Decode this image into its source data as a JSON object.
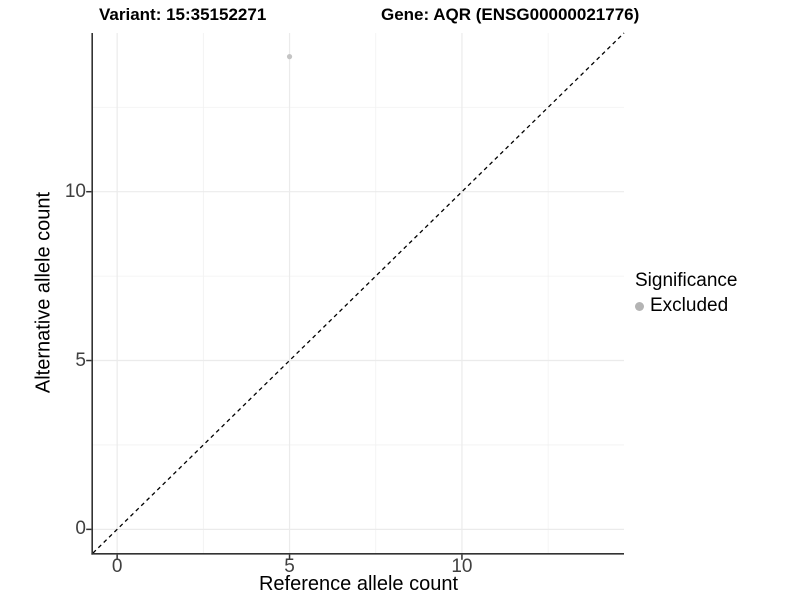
{
  "header": {
    "title_left": "Variant: 15:35152271",
    "title_right": "Gene: AQR (ENSG00000021776)"
  },
  "chart_data": {
    "type": "scatter",
    "xlabel": "Reference allele count",
    "ylabel": "Alternative allele count",
    "xlim": [
      -0.7,
      14.7
    ],
    "ylim": [
      -0.7,
      14.7
    ],
    "x_ticks": [
      0,
      5,
      10
    ],
    "y_ticks": [
      0,
      5,
      10
    ],
    "x_minor_ticks": [
      2.5,
      7.5,
      12.5
    ],
    "y_minor_ticks": [
      2.5,
      7.5,
      12.5
    ],
    "grid": "major and minor, light grey on white",
    "points": [
      {
        "x": 5,
        "y": 14,
        "series": "Excluded"
      }
    ],
    "identity_line": {
      "slope": 1,
      "intercept": 0,
      "linetype": "dashed"
    },
    "legend": {
      "title": "Significance",
      "position": "right",
      "entries": [
        {
          "label": "Excluded",
          "color": "#b4b4b4",
          "marker": "circle"
        }
      ]
    },
    "colors": {
      "point": "#c4c4c4",
      "grid_major": "#ebebeb",
      "grid_minor": "#f1f1f1",
      "axis_line": "#333333",
      "tick_label": "#404040",
      "identity_line": "#000000",
      "background": "#ffffff"
    }
  }
}
